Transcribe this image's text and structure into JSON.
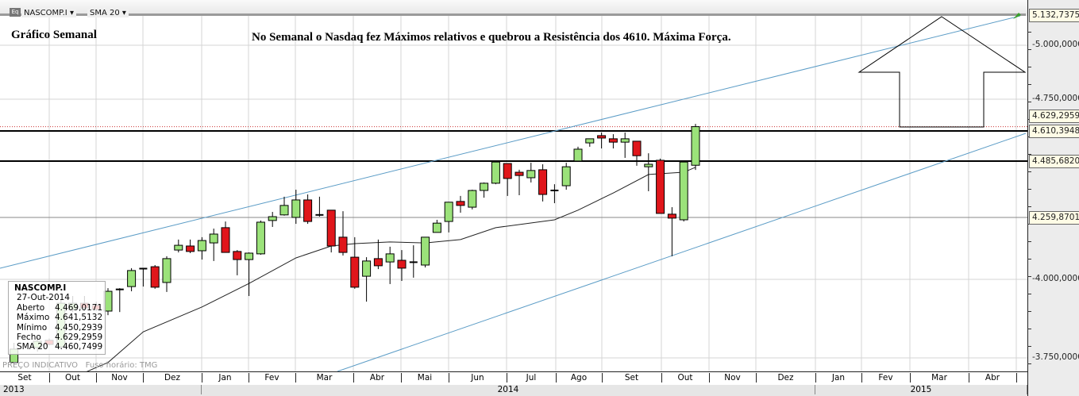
{
  "toolbar": {
    "symbol": "NASCOMP.I",
    "indicator": "SMA 20",
    "eq_icon": "Eq"
  },
  "annotations": {
    "title": "Gráfico Semanal",
    "headline": "No Semanal o Nasdaq fez Máximos relativos e quebrou a Resistência dos 4610. Máxima Força."
  },
  "legend": {
    "symbol": "NASCOMP.I",
    "date": "27-Out-2014",
    "rows": [
      {
        "label": "Aberto",
        "value": "4.469,0171"
      },
      {
        "label": "Máximo",
        "value": "4.641,5132"
      },
      {
        "label": "Mínimo",
        "value": "4.450,2939"
      },
      {
        "label": "Fecho",
        "value": "4.629,2959"
      },
      {
        "label": "SMA 20",
        "value": "4.460,7499"
      }
    ]
  },
  "footer": {
    "price_note": "PREÇO INDICATIVO",
    "timezone": "Fuso horário: TMG"
  },
  "price_labels": [
    {
      "value": 5132.7375,
      "text": "5.132,7375"
    },
    {
      "value": 4629.2959,
      "text": "4.629,2959"
    },
    {
      "value": 4610.3948,
      "text": "4.610,3948"
    },
    {
      "value": 4485.682,
      "text": "4.485,6820"
    },
    {
      "value": 4259.8701,
      "text": "4.259,8701"
    }
  ],
  "colors": {
    "up": "#9be27a",
    "down": "#e0161b",
    "trend": "#5b9cc6",
    "sma": "#222222"
  },
  "chart_data": {
    "type": "candlestick",
    "title": "Gráfico Semanal",
    "ylabel": "",
    "y_ticks": [
      {
        "value": 5000,
        "text": "5.000,0000"
      },
      {
        "value": 4750,
        "text": "4.750,0000"
      },
      {
        "value": 4000,
        "text": "4.000,0000"
      },
      {
        "value": 3750,
        "text": "3.750,0000"
      }
    ],
    "x_months": [
      "Set",
      "Out",
      "Nov",
      "Dez",
      "Jan",
      "Fev",
      "Mar",
      "Abr",
      "Mai",
      "Jun",
      "Jul",
      "Ago",
      "Set",
      "Out",
      "Nov",
      "Dez",
      "Jan",
      "Fev",
      "Mar",
      "Abr"
    ],
    "x_years": [
      "2013",
      "2014",
      "2015"
    ],
    "x_unit": "weeks relative to 27-Out-2014",
    "candles": [
      [
        -58,
        3727,
        3798,
        3722,
        3778
      ],
      [
        -56,
        3783,
        3816,
        3770,
        3803
      ],
      [
        -55,
        3806,
        3812,
        3790,
        3793
      ],
      [
        -54,
        3785,
        3934,
        3780,
        3924
      ],
      [
        -53,
        3904,
        3947,
        3896,
        3924
      ],
      [
        -52,
        3924,
        3947,
        3899,
        3909
      ],
      [
        -51,
        3917,
        3929,
        3899,
        3904
      ],
      [
        -50,
        3899,
        3972,
        3886,
        3962
      ],
      [
        -49,
        3966,
        3972,
        3896,
        3968
      ],
      [
        -48,
        3977,
        4047,
        3962,
        4037
      ],
      [
        -47,
        4043,
        4047,
        3977,
        4045
      ],
      [
        -46,
        4053,
        4060,
        3970,
        3975
      ],
      [
        -45,
        3990,
        4097,
        3960,
        4087
      ],
      [
        -44,
        4123,
        4167,
        4113,
        4143
      ],
      [
        -43,
        4140,
        4167,
        4110,
        4117
      ],
      [
        -42,
        4120,
        4177,
        4083,
        4163
      ],
      [
        -41,
        4153,
        4213,
        4077,
        4190
      ],
      [
        -40,
        4217,
        4243,
        4113,
        4113
      ],
      [
        -39,
        4117,
        4123,
        4017,
        4083
      ],
      [
        -38,
        4083,
        4113,
        3947,
        4110
      ],
      [
        -37,
        4107,
        4247,
        4103,
        4240
      ],
      [
        -36,
        4247,
        4282,
        4220,
        4263
      ],
      [
        -35,
        4270,
        4343,
        4267,
        4308
      ],
      [
        -34,
        4260,
        4371,
        4233,
        4330
      ],
      [
        -33,
        4330,
        4352,
        4233,
        4243
      ],
      [
        -32,
        4270,
        4343,
        4263,
        4268
      ],
      [
        -31,
        4289,
        4289,
        4113,
        4140
      ],
      [
        -30,
        4177,
        4285,
        4100,
        4113
      ],
      [
        -29,
        4093,
        4177,
        3970,
        3975
      ],
      [
        -28,
        4013,
        4093,
        3929,
        4077
      ],
      [
        -27,
        4087,
        4167,
        4043,
        4057
      ],
      [
        -26,
        4073,
        4137,
        3985,
        4107
      ],
      [
        -25,
        4080,
        4123,
        3995,
        4047
      ],
      [
        -24,
        4072,
        4143,
        4007,
        4068
      ],
      [
        -23,
        4060,
        4177,
        4050,
        4177
      ],
      [
        -22,
        4197,
        4250,
        4197,
        4236
      ],
      [
        -21,
        4243,
        4321,
        4197,
        4321
      ],
      [
        -20,
        4324,
        4346,
        4279,
        4308
      ],
      [
        -19,
        4301,
        4371,
        4292,
        4368
      ],
      [
        -18,
        4368,
        4400,
        4339,
        4397
      ],
      [
        -17,
        4397,
        4486,
        4393,
        4482
      ],
      [
        -16,
        4476,
        4476,
        4346,
        4416
      ],
      [
        -15,
        4441,
        4451,
        4349,
        4428
      ],
      [
        -14,
        4419,
        4479,
        4400,
        4448
      ],
      [
        -13,
        4451,
        4473,
        4324,
        4352
      ],
      [
        -12,
        4365,
        4393,
        4317,
        4368
      ],
      [
        -11,
        4387,
        4479,
        4371,
        4463
      ],
      [
        -10,
        4486,
        4545,
        4486,
        4535
      ],
      [
        -9,
        4561,
        4578,
        4545,
        4578
      ],
      [
        -8,
        4591,
        4604,
        4538,
        4581
      ],
      [
        -7,
        4578,
        4597,
        4538,
        4564
      ],
      [
        -6,
        4564,
        4604,
        4499,
        4578
      ],
      [
        -5,
        4568,
        4568,
        4467,
        4508
      ],
      [
        -4,
        4463,
        4518,
        4365,
        4473
      ],
      [
        -3,
        4489,
        4496,
        4276,
        4276
      ],
      [
        -2,
        4273,
        4301,
        4097,
        4257
      ],
      [
        -1,
        4250,
        4482,
        4243,
        4482
      ],
      [
        0,
        4469.0171,
        4641.5132,
        4450.2939,
        4629.2959
      ]
    ],
    "sma20": [
      [
        -53,
        3650
      ],
      [
        -51,
        3702
      ],
      [
        -50,
        3727
      ],
      [
        -47,
        3833
      ],
      [
        -42,
        3912
      ],
      [
        -38,
        3987
      ],
      [
        -34,
        4090
      ],
      [
        -31,
        4140
      ],
      [
        -29,
        4150
      ],
      [
        -26,
        4157
      ],
      [
        -23,
        4153
      ],
      [
        -20,
        4167
      ],
      [
        -17,
        4217
      ],
      [
        -12,
        4250
      ],
      [
        -10,
        4289
      ],
      [
        -7,
        4358
      ],
      [
        -4,
        4432
      ],
      [
        -3,
        4435
      ],
      [
        -1,
        4441
      ],
      [
        0,
        4460.7499
      ]
    ],
    "horizontal_lines": [
      4610.3948,
      4485.682,
      4259.8701
    ]
  }
}
